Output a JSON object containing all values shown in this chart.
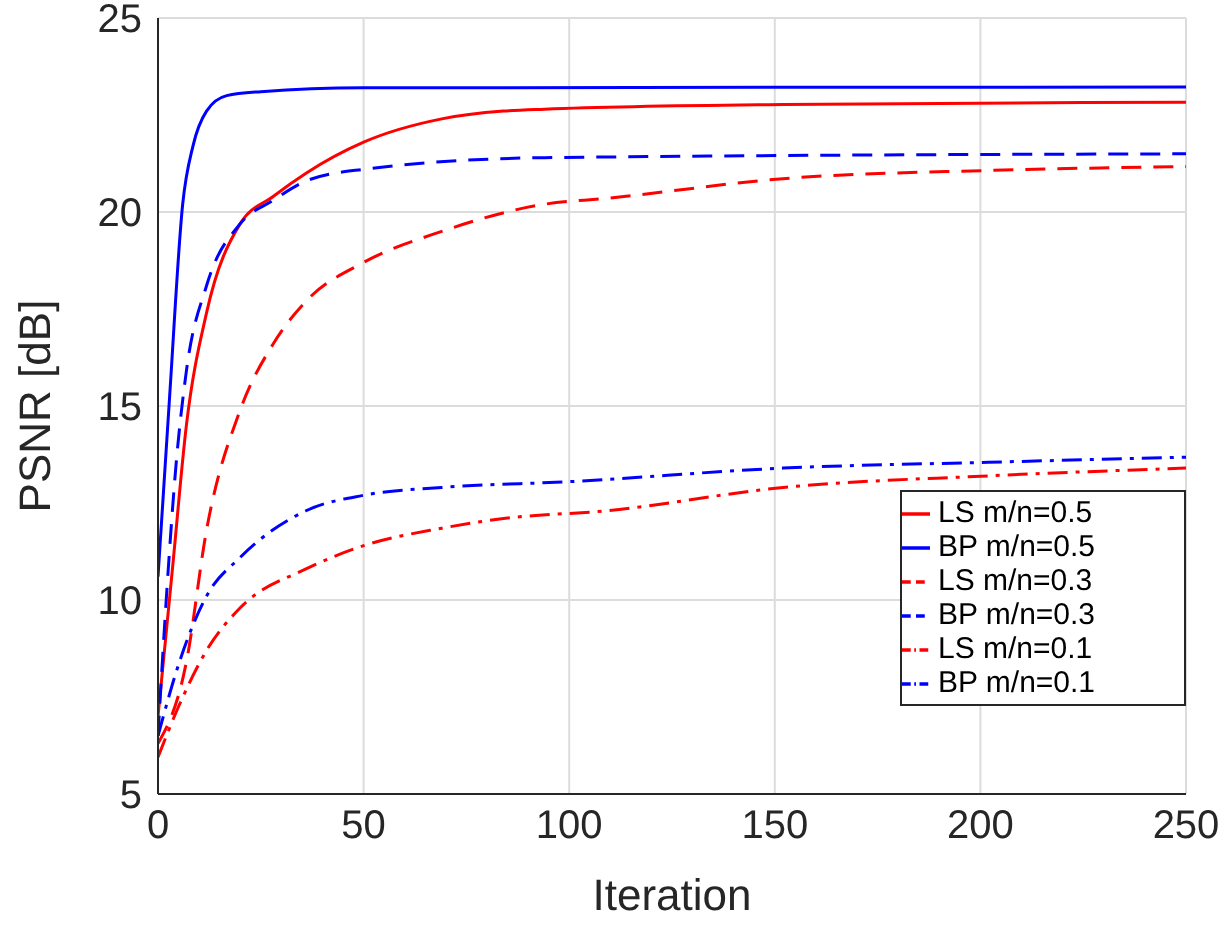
{
  "chart_data": {
    "type": "line",
    "xlabel": "Iteration",
    "ylabel": "PSNR [dB]",
    "xlim": [
      0,
      250
    ],
    "xticks": [
      0,
      50,
      100,
      150,
      200,
      250
    ],
    "ylim": [
      5,
      25
    ],
    "yticks": [
      5,
      10,
      15,
      20,
      25
    ],
    "grid": true,
    "legend": "bottom right",
    "marker": "none",
    "series": [
      {
        "name": "LS m/n=0.5",
        "color": "#ff0000",
        "line_style": "solid",
        "x": [
          0,
          3.6,
          6.9,
          11.8,
          20,
          28,
          36,
          50,
          69,
          84,
          94,
          152,
          250
        ],
        "values": [
          7,
          10.9,
          14.5,
          17.4,
          19.7,
          20.4,
          21.0,
          21.8,
          22.4,
          22.6,
          22.65,
          22.77,
          22.83
        ]
      },
      {
        "name": "BP m/n=0.5",
        "color": "#0000ff",
        "line_style": "solid",
        "x": [
          0,
          2.8,
          6,
          8.5,
          11.8,
          16.7,
          25,
          50,
          250
        ],
        "values": [
          10.6,
          15.2,
          20.2,
          21.7,
          22.6,
          23,
          23.1,
          23.2,
          23.22
        ]
      },
      {
        "name": "LS m/n=0.3",
        "color": "#ff0000",
        "line_style": "dashed",
        "x": [
          0,
          6.9,
          11.8,
          20,
          28,
          36,
          50,
          69,
          94,
          109,
          152,
          202,
          250
        ],
        "values": [
          6.3,
          8.4,
          11.8,
          14.9,
          16.6,
          17.7,
          18.7,
          19.5,
          20.2,
          20.35,
          20.86,
          21.07,
          21.17
        ]
      },
      {
        "name": "BP m/n=0.3",
        "color": "#0000ff",
        "line_style": "dashed",
        "x": [
          0,
          2,
          4.4,
          6.9,
          11.8,
          20,
          28,
          36,
          50,
          94,
          250
        ],
        "values": [
          6.5,
          10,
          13.5,
          15.9,
          18.1,
          19.7,
          20.3,
          20.8,
          21.1,
          21.4,
          21.5
        ]
      },
      {
        "name": "LS m/n=0.1",
        "color": "#ff0000",
        "line_style": "dashdot",
        "x": [
          0,
          5.2,
          11.8,
          20,
          36,
          50,
          69,
          84,
          109,
          152,
          202,
          250
        ],
        "values": [
          5.95,
          7.3,
          8.7,
          9.8,
          10.8,
          11.4,
          11.85,
          12.1,
          12.3,
          12.9,
          13.2,
          13.4
        ]
      },
      {
        "name": "BP m/n=0.1",
        "color": "#0000ff",
        "line_style": "dashdot",
        "x": [
          0,
          5.2,
          11.8,
          20,
          36,
          50,
          69,
          100,
          152,
          202,
          250
        ],
        "values": [
          6.5,
          8.4,
          10.1,
          11.1,
          12.3,
          12.7,
          12.9,
          13.05,
          13.4,
          13.55,
          13.68
        ]
      }
    ]
  }
}
